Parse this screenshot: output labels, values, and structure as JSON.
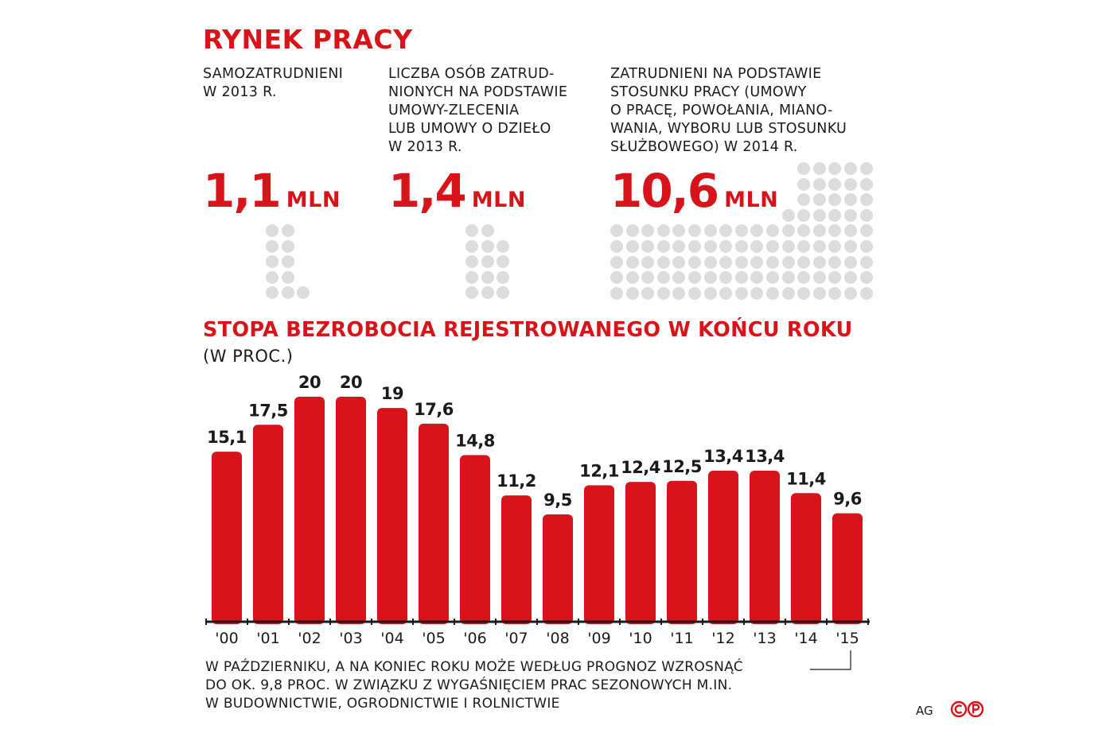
{
  "header": {
    "title": "RYNEK PRACY"
  },
  "stats": [
    {
      "description": "SAMOZATRUDNIENI\nW 2013 R.",
      "value": "1,1",
      "unit": "MLN"
    },
    {
      "description": "LICZBA OSÓB ZATRUD-\nNIONYCH NA PODSTAWIE\nUMOWY-ZLECENIA\nLUB UMOWY O DZIEŁO\nW 2013 R.",
      "value": "1,4",
      "unit": "MLN"
    },
    {
      "description": "ZATRUDNIENI NA PODSTAWIE\nSTOSUNKU PRACY (UMOWY\nO PRACĘ, POWOŁANIA, MIANO-\nWANIA, WYBORU LUB STOSUNKU\nSŁUŻBOWEGO) W 2014 R.",
      "value": "10,6",
      "unit": "MLN"
    }
  ],
  "chart_data": {
    "type": "bar",
    "title": "STOPA BEZROBOCIA REJESTROWANEGO W KOŃCU ROKU",
    "subtitle": "(W PROC.)",
    "categories": [
      "'00",
      "'01",
      "'02",
      "'03",
      "'04",
      "'05",
      "'06",
      "'07",
      "'08",
      "'09",
      "'10",
      "'11",
      "'12",
      "'13",
      "'14",
      "'15"
    ],
    "values": [
      15.1,
      17.5,
      20,
      20,
      19,
      17.6,
      14.8,
      11.2,
      9.5,
      12.1,
      12.4,
      12.5,
      13.4,
      13.4,
      11.4,
      9.6
    ],
    "value_labels": [
      "15,1",
      "17,5",
      "20",
      "20",
      "19",
      "17,6",
      "14,8",
      "11,2",
      "9,5",
      "12,1",
      "12,4",
      "12,5",
      "13,4",
      "13,4",
      "11,4",
      "9,6"
    ],
    "ylim": [
      0,
      20
    ],
    "bar_color": "#d7141a",
    "grid": false,
    "annotation": "W PAŹDZIERNIKU, A NA KONIEC ROKU MOŻE WEDŁUG PROGNOZ WZROSNĄĆ\nDO OK. 9,8 PROC. W ZWIĄZKU Z WYGAŚNIĘCIEM PRAC SEZONOWYCH M.IN.\nW BUDOWNICTWIE, OGRODNICTWIE I ROLNICTWIE"
  },
  "footer": {
    "source": "AG",
    "copyright_logo": "copyright-p-icon"
  },
  "colors": {
    "accent": "#d7141a",
    "dot": "#dcdcdc",
    "text": "#1a1a1a"
  }
}
